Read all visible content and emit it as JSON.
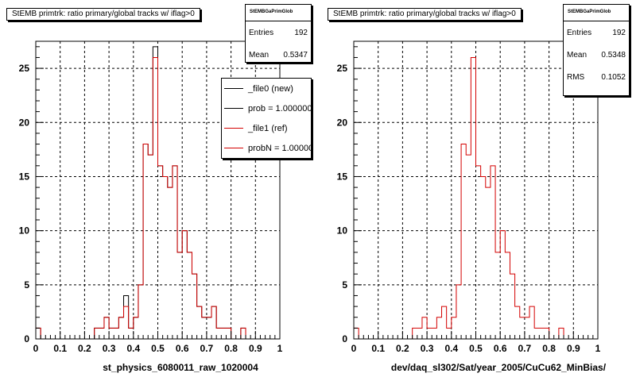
{
  "chart_data": [
    {
      "type": "histogram",
      "title": "StEMB primtrk: ratio primary/global tracks w/ iflag>0",
      "xlabel": "st_physics_6080011_raw_1020004",
      "xlim": [
        0,
        1
      ],
      "ylim": [
        0,
        27.5
      ],
      "x_ticks": [
        "0",
        "0.1",
        "0.2",
        "0.3",
        "0.4",
        "0.5",
        "0.6",
        "0.7",
        "0.8",
        "0.9",
        "1"
      ],
      "y_ticks": [
        "0",
        "5",
        "10",
        "15",
        "20",
        "25"
      ],
      "grid": true,
      "bin_width": 0.02,
      "series": [
        {
          "name": "_file0 (new)",
          "color": "#000000",
          "values": [
            1,
            0,
            0,
            0,
            0,
            0,
            0,
            0,
            0,
            0,
            0,
            0,
            1,
            1,
            2,
            1,
            1,
            2,
            4,
            1,
            2,
            5,
            18,
            17,
            27,
            16,
            15,
            14,
            16,
            8,
            10,
            8,
            6,
            3,
            2,
            2,
            3,
            1,
            1,
            1,
            0,
            0,
            1,
            0,
            0,
            0,
            0,
            0,
            0,
            0
          ]
        },
        {
          "name": "_file1 (ref)",
          "color": "#d40000",
          "values": [
            1,
            0,
            0,
            0,
            0,
            0,
            0,
            0,
            0,
            0,
            0,
            0,
            1,
            1,
            2,
            1,
            1,
            2,
            3,
            1,
            2,
            5,
            18,
            17,
            26,
            16,
            15,
            14,
            16,
            8,
            10,
            8,
            6,
            3,
            2,
            2,
            3,
            1,
            1,
            1,
            0,
            0,
            1,
            0,
            0,
            0,
            0,
            0,
            0,
            0
          ]
        }
      ],
      "stats": {
        "header": "StEMBGaPrimGlob",
        "entries_label": "Entries",
        "entries": "192",
        "mean_label": "Mean",
        "mean": "0.5347"
      },
      "legend": [
        "_file0 (new)",
        "prob = 1.000000",
        "_file1 (ref)",
        "probN = 1.000000"
      ]
    },
    {
      "type": "histogram",
      "title": "StEMB primtrk: ratio primary/global tracks w/ iflag>0",
      "xlabel": "dev/daq_sl302/Sat/year_2005/CuCu62_MinBias/",
      "xlim": [
        0,
        1
      ],
      "ylim": [
        0,
        27.5
      ],
      "x_ticks": [
        "0",
        "0.1",
        "0.2",
        "0.3",
        "0.4",
        "0.5",
        "0.6",
        "0.7",
        "0.8",
        "0.9",
        "1"
      ],
      "y_ticks": [
        "0",
        "5",
        "10",
        "15",
        "20",
        "25"
      ],
      "grid": true,
      "bin_width": 0.02,
      "series": [
        {
          "name": "",
          "color": "#d40000",
          "values": [
            1,
            0,
            0,
            0,
            0,
            0,
            0,
            0,
            0,
            0,
            0,
            0,
            1,
            1,
            2,
            1,
            1,
            2,
            3,
            1,
            2,
            5,
            18,
            17,
            26,
            16,
            15,
            14,
            16,
            8,
            10,
            8,
            6,
            3,
            2,
            2,
            3,
            1,
            1,
            1,
            0,
            0,
            1,
            0,
            0,
            0,
            0,
            0,
            0,
            0
          ]
        }
      ],
      "stats": {
        "header": "StEMBGaPrimGlob",
        "entries_label": "Entries",
        "entries": "192",
        "mean_label": "Mean",
        "mean": "0.5348",
        "rms_label": "RMS",
        "rms": "0.1052"
      }
    }
  ]
}
